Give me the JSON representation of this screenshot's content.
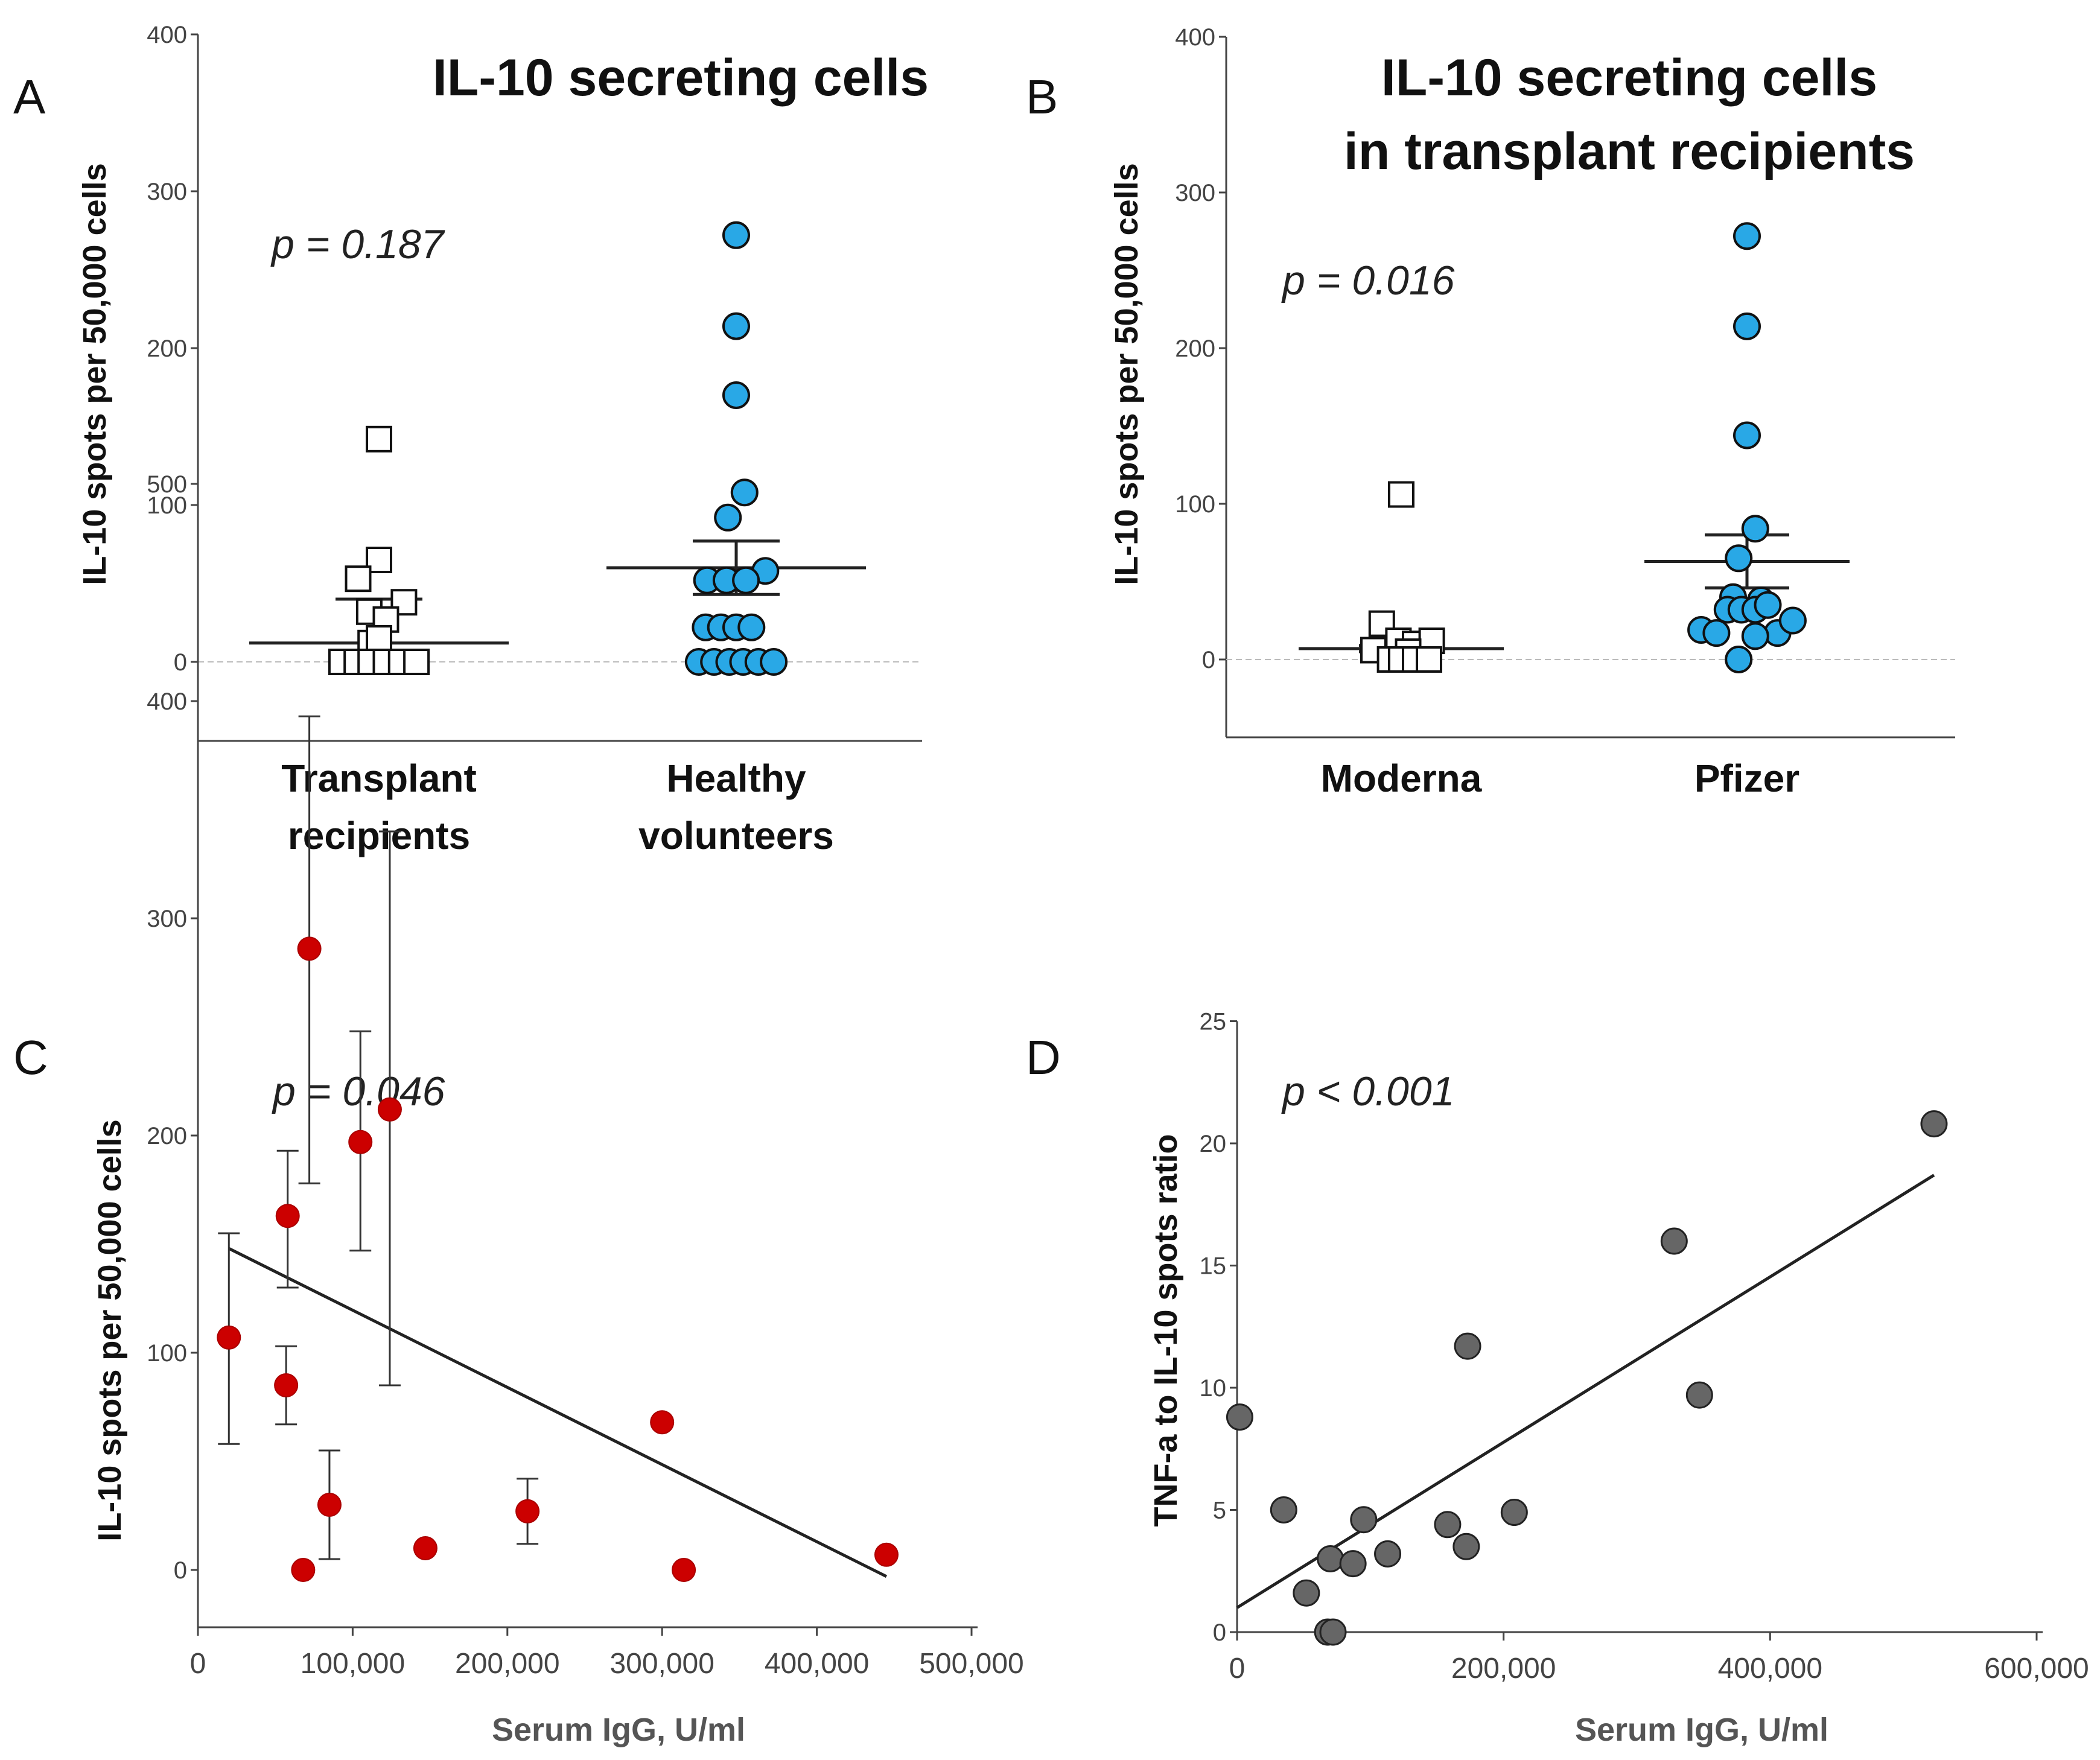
{
  "colors": {
    "blue_marker": "#29a8e6",
    "red_marker": "#cc0000",
    "gray_marker": "#666666",
    "axis": "#444444",
    "line": "#222222"
  },
  "chart_data": [
    {
      "panel": "A",
      "type": "scatter",
      "title": "IL-10 secreting cells",
      "ylabel": "IL-10 spots per 50,000 cells",
      "xlabel": "",
      "ylim": [
        -50,
        400
      ],
      "yticks": [
        "0",
        "100",
        "200",
        "300",
        "400"
      ],
      "annotation": "p = 0.187",
      "categories": [
        "Transplant\nrecipients",
        "Healthy\nvolunteers"
      ],
      "category_lines": [
        [
          "Transplant",
          "recipients"
        ],
        [
          "Healthy",
          "volunteers"
        ]
      ],
      "series": [
        {
          "category": "Transplant\nrecipients",
          "marker": "open-square",
          "points": [
            {
              "x": 0.0,
              "y": 142
            },
            {
              "x": 0.0,
              "y": 65
            },
            {
              "x": -0.15,
              "y": 53
            },
            {
              "x": 0.18,
              "y": 38
            },
            {
              "x": -0.07,
              "y": 32
            },
            {
              "x": 0.05,
              "y": 27
            },
            {
              "x": -0.06,
              "y": 12
            },
            {
              "x": 0.0,
              "y": 15
            },
            {
              "x": -0.27,
              "y": 0
            },
            {
              "x": -0.16,
              "y": 0
            },
            {
              "x": -0.06,
              "y": 0
            },
            {
              "x": 0.05,
              "y": 0
            },
            {
              "x": 0.16,
              "y": 0
            },
            {
              "x": 0.27,
              "y": 0
            }
          ],
          "mean": 12,
          "sem_upper": 40,
          "sem_lower": 2
        },
        {
          "category": "Healthy\nvolunteers",
          "marker": "filled-circle",
          "points": [
            {
              "x": 0.0,
              "y": 272
            },
            {
              "x": 0.0,
              "y": 214
            },
            {
              "x": 0.0,
              "y": 170
            },
            {
              "x": 0.06,
              "y": 108
            },
            {
              "x": -0.06,
              "y": 92
            },
            {
              "x": 0.21,
              "y": 58
            },
            {
              "x": -0.21,
              "y": 52
            },
            {
              "x": -0.07,
              "y": 52
            },
            {
              "x": 0.07,
              "y": 52
            },
            {
              "x": -0.22,
              "y": 22
            },
            {
              "x": -0.11,
              "y": 22
            },
            {
              "x": 0.0,
              "y": 22
            },
            {
              "x": 0.11,
              "y": 22
            },
            {
              "x": -0.27,
              "y": 0
            },
            {
              "x": -0.16,
              "y": 0
            },
            {
              "x": -0.05,
              "y": 0
            },
            {
              "x": 0.05,
              "y": 0
            },
            {
              "x": 0.16,
              "y": 0
            },
            {
              "x": 0.27,
              "y": 0
            }
          ],
          "mean": 60,
          "sem_upper": 77,
          "sem_lower": 43
        }
      ]
    },
    {
      "panel": "B",
      "type": "scatter",
      "title": "IL-10 secreting cells\nin transplant recipients",
      "title_lines": [
        "IL-10 secreting cells",
        "in transplant recipients"
      ],
      "ylabel": "IL-10 spots per 50,000 cells",
      "xlabel": "",
      "ylim": [
        -50,
        400
      ],
      "yticks": [
        "0",
        "100",
        "200",
        "300",
        "400"
      ],
      "annotation": "p = 0.016",
      "categories": [
        "Moderna",
        "Pfizer"
      ],
      "category_lines": [
        [
          "Moderna"
        ],
        [
          "Pfizer"
        ]
      ],
      "series": [
        {
          "category": "Moderna",
          "marker": "open-square",
          "points": [
            {
              "x": 0.0,
              "y": 106
            },
            {
              "x": -0.14,
              "y": 23
            },
            {
              "x": -0.02,
              "y": 12
            },
            {
              "x": 0.1,
              "y": 10
            },
            {
              "x": 0.22,
              "y": 12
            },
            {
              "x": -0.2,
              "y": 6
            },
            {
              "x": 0.05,
              "y": 5
            },
            {
              "x": -0.08,
              "y": 0
            },
            {
              "x": 0.0,
              "y": 0
            },
            {
              "x": 0.1,
              "y": 0
            },
            {
              "x": 0.2,
              "y": 0
            }
          ],
          "mean": 7,
          "sem_upper": 9,
          "sem_lower": 5
        },
        {
          "category": "Pfizer",
          "marker": "filled-circle",
          "points": [
            {
              "x": 0.0,
              "y": 272
            },
            {
              "x": 0.0,
              "y": 214
            },
            {
              "x": 0.0,
              "y": 144
            },
            {
              "x": 0.06,
              "y": 84
            },
            {
              "x": -0.06,
              "y": 65
            },
            {
              "x": -0.1,
              "y": 40
            },
            {
              "x": 0.1,
              "y": 38
            },
            {
              "x": -0.14,
              "y": 32
            },
            {
              "x": -0.04,
              "y": 32
            },
            {
              "x": 0.06,
              "y": 32
            },
            {
              "x": 0.15,
              "y": 35
            },
            {
              "x": -0.33,
              "y": 19
            },
            {
              "x": -0.22,
              "y": 17
            },
            {
              "x": 0.22,
              "y": 17
            },
            {
              "x": 0.33,
              "y": 25
            },
            {
              "x": -0.06,
              "y": 0
            },
            {
              "x": 0.06,
              "y": 15
            }
          ],
          "mean": 63,
          "sem_upper": 80,
          "sem_lower": 46
        }
      ]
    },
    {
      "panel": "C",
      "type": "scatter",
      "title": "",
      "ylabel": "IL-10 spots per 50,000 cells",
      "xlabel": "Serum IgG, U/ml",
      "xlim": [
        0,
        500000
      ],
      "ylim": [
        -50,
        500
      ],
      "xticks": [
        0,
        100000,
        200000,
        300000,
        400000,
        500000
      ],
      "xtick_labels": [
        "0",
        "100,000",
        "200,000",
        "300,000",
        "400,000",
        "500,000"
      ],
      "yticks": [
        "0",
        "100",
        "200",
        "300",
        "400",
        "500"
      ],
      "annotation": "p = 0.046",
      "points": [
        {
          "x": 20000,
          "y": 107,
          "err_low": 58,
          "err_high": 155
        },
        {
          "x": 57000,
          "y": 85,
          "err_low": 67,
          "err_high": 103
        },
        {
          "x": 58000,
          "y": 163,
          "err_low": 130,
          "err_high": 193
        },
        {
          "x": 68000,
          "y": 0,
          "err_low": null,
          "err_high": null
        },
        {
          "x": 72000,
          "y": 286,
          "err_low": 178,
          "err_high": 393
        },
        {
          "x": 85000,
          "y": 30,
          "err_low": 5,
          "err_high": 55
        },
        {
          "x": 105000,
          "y": 197,
          "err_low": 147,
          "err_high": 248
        },
        {
          "x": 124000,
          "y": 212,
          "err_low": 85,
          "err_high": 340
        },
        {
          "x": 147000,
          "y": 10,
          "err_low": null,
          "err_high": null
        },
        {
          "x": 213000,
          "y": 27,
          "err_low": 12,
          "err_high": 42
        },
        {
          "x": 300000,
          "y": 68,
          "err_low": null,
          "err_high": null
        },
        {
          "x": 314000,
          "y": 0,
          "err_low": null,
          "err_high": null
        },
        {
          "x": 445000,
          "y": 7,
          "err_low": null,
          "err_high": null
        }
      ],
      "trendline": [
        {
          "x": 20000,
          "y": 148
        },
        {
          "x": 445000,
          "y": -3
        }
      ]
    },
    {
      "panel": "D",
      "type": "scatter",
      "title": "",
      "ylabel": "TNF-a to  IL-10 spots ratio",
      "xlabel": "Serum IgG, U/ml",
      "xlim": [
        0,
        600000
      ],
      "ylim": [
        0,
        25
      ],
      "xticks": [
        0,
        200000,
        400000,
        600000
      ],
      "xtick_labels": [
        "0",
        "200,000",
        "400,000",
        "600,000"
      ],
      "yticks": [
        "0",
        "5",
        "10",
        "15",
        "20",
        "25"
      ],
      "annotation": "p < 0.001",
      "points": [
        {
          "x": 2000,
          "y": 8.8
        },
        {
          "x": 35000,
          "y": 5.0
        },
        {
          "x": 52000,
          "y": 1.6
        },
        {
          "x": 68000,
          "y": 0.0
        },
        {
          "x": 72000,
          "y": 0.0
        },
        {
          "x": 70000,
          "y": 3.0
        },
        {
          "x": 87000,
          "y": 2.8
        },
        {
          "x": 95000,
          "y": 4.6
        },
        {
          "x": 113000,
          "y": 3.2
        },
        {
          "x": 158000,
          "y": 4.4
        },
        {
          "x": 172000,
          "y": 3.5
        },
        {
          "x": 173000,
          "y": 11.7
        },
        {
          "x": 208000,
          "y": 4.9
        },
        {
          "x": 328000,
          "y": 16.0
        },
        {
          "x": 347000,
          "y": 9.7
        },
        {
          "x": 523000,
          "y": 20.8
        }
      ],
      "trendline": [
        {
          "x": 0,
          "y": 1.0
        },
        {
          "x": 523000,
          "y": 18.7
        }
      ]
    }
  ]
}
